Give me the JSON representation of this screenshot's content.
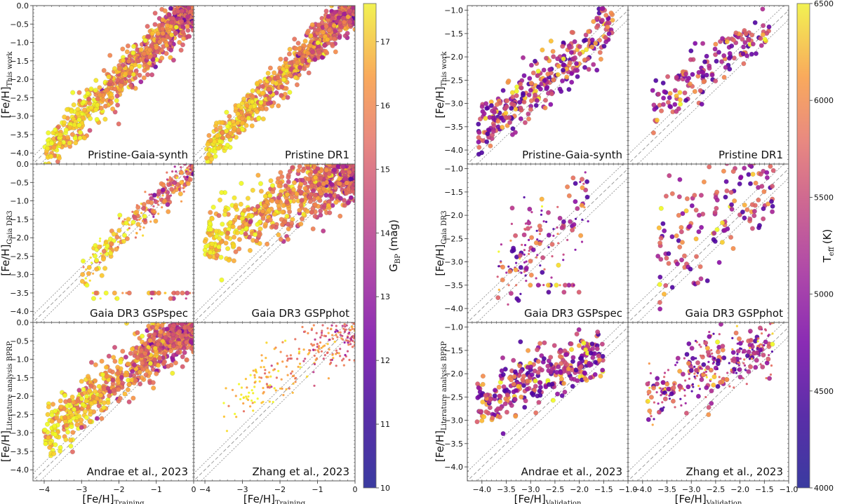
{
  "chart_data": [
    {
      "type": "scatter",
      "title": "",
      "xlabel": "[Fe/H]",
      "xlabel_sub": "Training",
      "xlim": [
        -4.3,
        0.0
      ],
      "ylim": [
        -4.3,
        0.0
      ],
      "xticks": [
        -4,
        -3,
        -2,
        -1,
        0
      ],
      "xtick_labels": [
        "−4",
        "−3",
        "−2",
        "−1",
        "0"
      ],
      "yticks": [
        0.0,
        -0.5,
        -1.0,
        -1.5,
        -2.0,
        -2.5,
        -3.0,
        -3.5,
        -4.0
      ],
      "ytick_labels": [
        "0.0",
        "−0.5",
        "−1.0",
        "−1.5",
        "−2.0",
        "−2.5",
        "−3.0",
        "−3.5",
        "−4.0"
      ],
      "row_ylabels": [
        {
          "main": "[Fe/H]",
          "sub": "This work"
        },
        {
          "main": "[Fe/H]",
          "sub": "Gaia DR3"
        },
        {
          "main": "[Fe/H]",
          "sub": "Literature analysis BPRP"
        }
      ],
      "panels": [
        "Pristine-Gaia-synth",
        "Pristine DR1",
        "Gaia DR3 GSPspec",
        "Gaia DR3 GSPphot",
        "Andrae et al., 2023",
        "Zhang et al., 2023"
      ],
      "reference_lines": {
        "one_to_one": true,
        "offsets": [
          -0.2,
          0.2
        ]
      },
      "colorbar": {
        "label": "G",
        "label_sub": "BP",
        "label_unit": "(mag)",
        "range": [
          10,
          17.6
        ],
        "ticks": [
          10,
          11,
          12,
          13,
          14,
          15,
          16,
          17
        ],
        "tick_labels": [
          "10",
          "11",
          "12",
          "13",
          "14",
          "15",
          "16",
          "17"
        ],
        "colormap": "plasma"
      },
      "series": [
        {
          "panel": "Pristine-Gaia-synth",
          "trend": {
            "x_range": [
              -4.0,
              0.0
            ],
            "slope": 1.0,
            "scatter": 0.3
          },
          "density": "dense",
          "marker": "large"
        },
        {
          "panel": "Pristine DR1",
          "trend": {
            "x_range": [
              -4.0,
              0.0
            ],
            "slope": 1.0,
            "scatter": 0.25
          },
          "density": "dense",
          "marker": "large"
        },
        {
          "panel": "Gaia DR3 GSPspec",
          "trend": {
            "x_range": [
              -3.0,
              0.0
            ],
            "slope": 1.0,
            "scatter": 0.25
          },
          "floor_value": -3.5,
          "density": "medium",
          "marker": "mixed"
        },
        {
          "panel": "Gaia DR3 GSPphot",
          "trend": {
            "x_range": [
              -4.0,
              0.0
            ],
            "slope": 0.55,
            "scatter": 0.45
          },
          "density": "dense",
          "marker": "large"
        },
        {
          "panel": "Andrae et al., 2023",
          "trend": {
            "x_range": [
              -4.0,
              0.0
            ],
            "slope": 0.75,
            "scatter": 0.35
          },
          "density": "dense",
          "marker": "large"
        },
        {
          "panel": "Zhang et al., 2023",
          "trend": {
            "x_range": [
              -3.5,
              0.0
            ],
            "slope": 0.65,
            "scatter": 0.4
          },
          "density": "medium",
          "marker": "small"
        }
      ]
    },
    {
      "type": "scatter",
      "title": "",
      "xlabel": "[Fe/H]",
      "xlabel_sub": "Validation",
      "xlim": [
        -4.3,
        -1.0
      ],
      "ylim": [
        -4.3,
        -0.9
      ],
      "xticks": [
        -4.0,
        -3.5,
        -3.0,
        -2.5,
        -2.0,
        -1.5,
        -1.0
      ],
      "xtick_labels": [
        "−4.0",
        "−3.5",
        "−3.0",
        "−2.5",
        "−2.0",
        "−1.5",
        "−1.0"
      ],
      "yticks": [
        -1.0,
        -1.5,
        -2.0,
        -2.5,
        -3.0,
        -3.5,
        -4.0
      ],
      "ytick_labels": [
        "−1.0",
        "−1.5",
        "−2.0",
        "−2.5",
        "−3.0",
        "−3.5",
        "−4.0"
      ],
      "row_ylabels": [
        {
          "main": "[Fe/H]",
          "sub": "This work"
        },
        {
          "main": "[Fe/H]",
          "sub": "Gaia DR3"
        },
        {
          "main": "[Fe/H]",
          "sub": "Literature analysis BPRP"
        }
      ],
      "panels": [
        "Pristine-Gaia-synth",
        "Pristine DR1",
        "Gaia DR3 GSPspec",
        "Gaia DR3 GSPphot",
        "Andrae et al., 2023",
        "Zhang et al., 2023"
      ],
      "reference_lines": {
        "one_to_one": true,
        "offsets": [
          -0.2,
          0.2
        ]
      },
      "colorbar": {
        "label": "T",
        "label_sub": "eff",
        "label_unit": "(K)",
        "range": [
          4000,
          6500
        ],
        "ticks": [
          4000,
          4500,
          5000,
          5500,
          6000,
          6500
        ],
        "tick_labels": [
          "4000",
          "4500",
          "5000",
          "5500",
          "6000",
          "6500"
        ],
        "colormap": "plasma"
      },
      "series": [
        {
          "panel": "Pristine-Gaia-synth",
          "trend": {
            "x_range": [
              -4.1,
              -1.3
            ],
            "slope": 0.85,
            "scatter": 0.3
          },
          "density": "medium",
          "marker": "large"
        },
        {
          "panel": "Pristine DR1",
          "trend": {
            "x_range": [
              -3.8,
              -1.4
            ],
            "slope": 0.7,
            "scatter": 0.3
          },
          "density": "sparse",
          "marker": "large"
        },
        {
          "panel": "Gaia DR3 GSPspec",
          "trend": {
            "x_range": [
              -3.7,
              -1.8
            ],
            "slope": 0.8,
            "scatter": 0.5
          },
          "floor_value": -3.5,
          "density": "sparse",
          "marker": "mixed"
        },
        {
          "panel": "Gaia DR3 GSPphot",
          "trend": {
            "x_range": [
              -3.7,
              -1.3
            ],
            "slope": 0.6,
            "scatter": 0.6
          },
          "density": "sparse",
          "marker": "large"
        },
        {
          "panel": "Andrae et al., 2023",
          "trend": {
            "x_range": [
              -4.1,
              -1.5
            ],
            "slope": 0.45,
            "scatter": 0.3
          },
          "density": "medium",
          "marker": "large"
        },
        {
          "panel": "Zhang et al., 2023",
          "trend": {
            "x_range": [
              -3.9,
              -1.3
            ],
            "slope": 0.45,
            "scatter": 0.35
          },
          "density": "medium",
          "marker": "mixed"
        }
      ]
    }
  ]
}
